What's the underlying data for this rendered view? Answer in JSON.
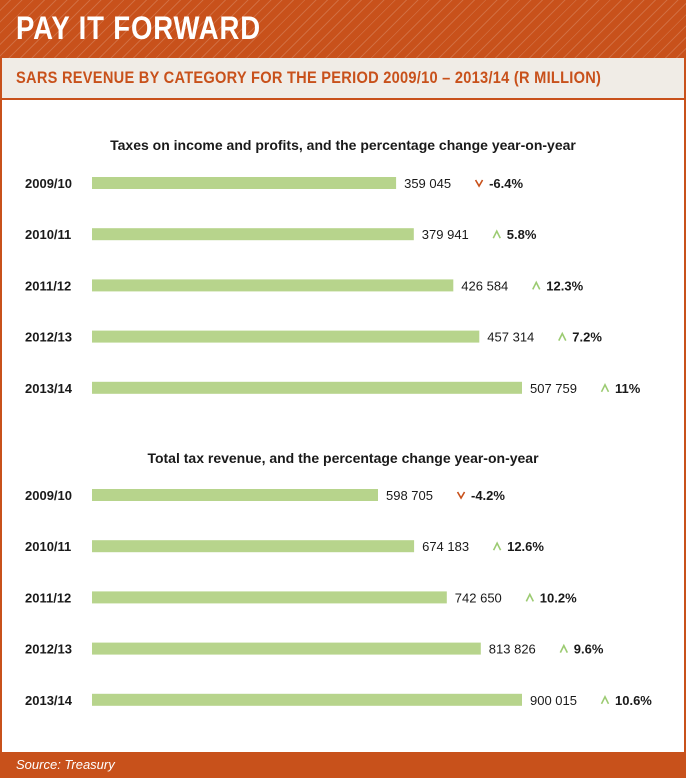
{
  "header": {
    "title": "PAY IT FORWARD"
  },
  "subheader": {
    "title": "SARS REVENUE BY CATEGORY FOR THE PERIOD 2009/10 – 2013/14 (R MILLION)"
  },
  "footer": {
    "source": "Source: Treasury"
  },
  "colors": {
    "accent": "#c8511b",
    "bar": "#b7d48c",
    "arrow_up": "#9ccb72",
    "arrow_down": "#c8511b"
  },
  "chart_data": [
    {
      "type": "bar",
      "orientation": "horizontal",
      "title": "Taxes on income and profits, and the percentage change year-on-year",
      "categories": [
        "2009/10",
        "2010/11",
        "2011/12",
        "2012/13",
        "2013/14"
      ],
      "values": [
        359045,
        379941,
        426584,
        457314,
        507759
      ],
      "value_labels": [
        "359 045",
        "379 941",
        "426 584",
        "457 314",
        "507 759"
      ],
      "pct_change": [
        -6.4,
        5.8,
        12.3,
        7.2,
        11
      ],
      "pct_labels": [
        "-6.4%",
        "5.8%",
        "12.3%",
        "7.2%",
        "11%"
      ],
      "xmax": 507759
    },
    {
      "type": "bar",
      "orientation": "horizontal",
      "title": "Total tax revenue, and the percentage change year-on-year",
      "categories": [
        "2009/10",
        "2010/11",
        "2011/12",
        "2012/13",
        "2013/14"
      ],
      "values": [
        598705,
        674183,
        742650,
        813826,
        900015
      ],
      "value_labels": [
        "598 705",
        "674 183",
        "742 650",
        "813 826",
        "900 015"
      ],
      "pct_change": [
        -4.2,
        12.6,
        10.2,
        9.6,
        10.6
      ],
      "pct_labels": [
        "-4.2%",
        "12.6%",
        "10.2%",
        "9.6%",
        "10.6%"
      ],
      "xmax": 900015
    }
  ]
}
